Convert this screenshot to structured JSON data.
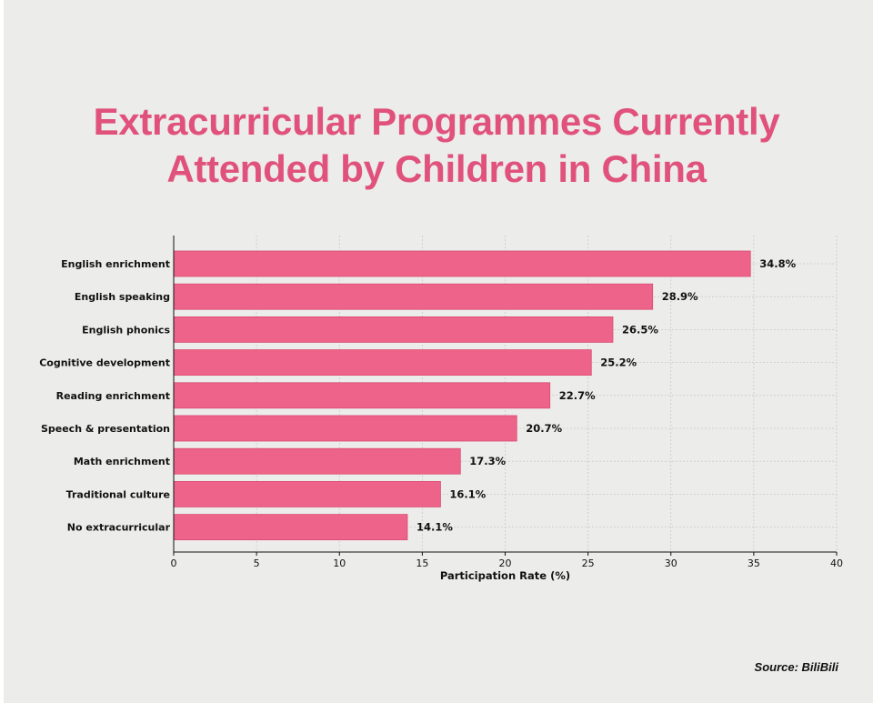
{
  "chart_data": {
    "type": "bar",
    "orientation": "horizontal",
    "title_lines": [
      "Extracurricular Programmes Currently",
      "Attended by Children in China"
    ],
    "xlabel": "Participation Rate (%)",
    "ylabel": "",
    "xlim": [
      0,
      40
    ],
    "xticks": [
      0,
      5,
      10,
      15,
      20,
      25,
      30,
      35,
      40
    ],
    "grid": true,
    "categories": [
      "English enrichment",
      "English speaking",
      "English phonics",
      "Cognitive development",
      "Reading enrichment",
      "Speech & presentation",
      "Math enrichment",
      "Traditional culture",
      "No extracurricular"
    ],
    "values": [
      34.8,
      28.9,
      26.5,
      25.2,
      22.7,
      20.7,
      17.3,
      16.1,
      14.1
    ],
    "value_labels": [
      "34.8%",
      "28.9%",
      "26.5%",
      "25.2%",
      "22.7%",
      "20.7%",
      "17.3%",
      "16.1%",
      "14.1%"
    ],
    "bar_color": "#ee6389",
    "bar_edge_color": "#d94a72",
    "title_color": "#e0527c"
  },
  "source": "Source: BiliBili"
}
